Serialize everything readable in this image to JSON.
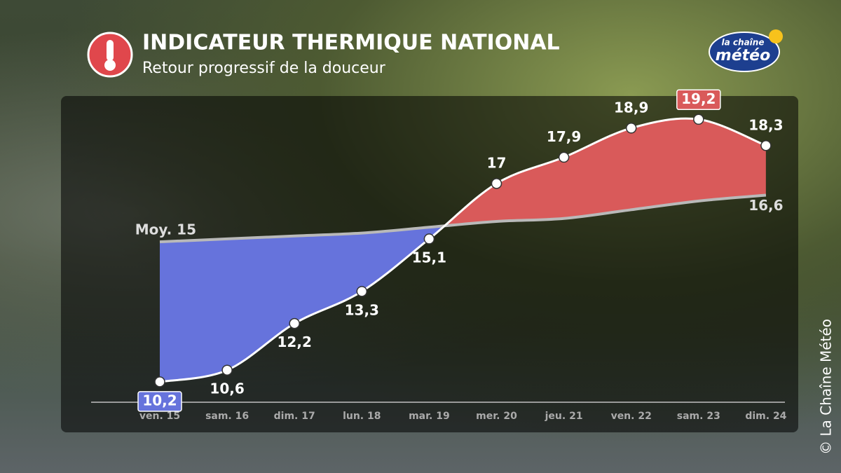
{
  "header": {
    "title": "INDICATEUR THERMIQUE NATIONAL",
    "subtitle": "Retour progressif de la douceur"
  },
  "logo": {
    "line1": "la chaîne",
    "line2": "météo"
  },
  "copyright": "© La Chaîne Météo",
  "chart_data": {
    "type": "line",
    "categories": [
      "ven. 15",
      "sam. 16",
      "dim. 17",
      "lun. 18",
      "mar. 19",
      "mer. 20",
      "jeu. 21",
      "ven. 22",
      "sam. 23",
      "dim. 24"
    ],
    "series": [
      {
        "color": "#ffffff",
        "values": [
          10.2,
          10.6,
          12.2,
          13.3,
          15.1,
          17,
          17.9,
          18.9,
          19.2,
          18.3
        ],
        "value_labels": [
          "10,2",
          "10,6",
          "12,2",
          "13,3",
          "15,1",
          "17",
          "17,9",
          "18,9",
          "19,2",
          "18,3"
        ]
      },
      {
        "color": "#b9b9b9",
        "values": [
          15,
          15.1,
          15.2,
          15.3,
          15.5,
          15.7,
          15.8,
          16.1,
          16.4,
          16.6
        ],
        "value_labels": [
          "Moy. 15",
          null,
          null,
          null,
          null,
          null,
          null,
          null,
          null,
          "16,6"
        ]
      }
    ],
    "below_color": "#6673dc",
    "above_color": "#d95a5a",
    "ylim": [
      9.5,
      20
    ]
  }
}
